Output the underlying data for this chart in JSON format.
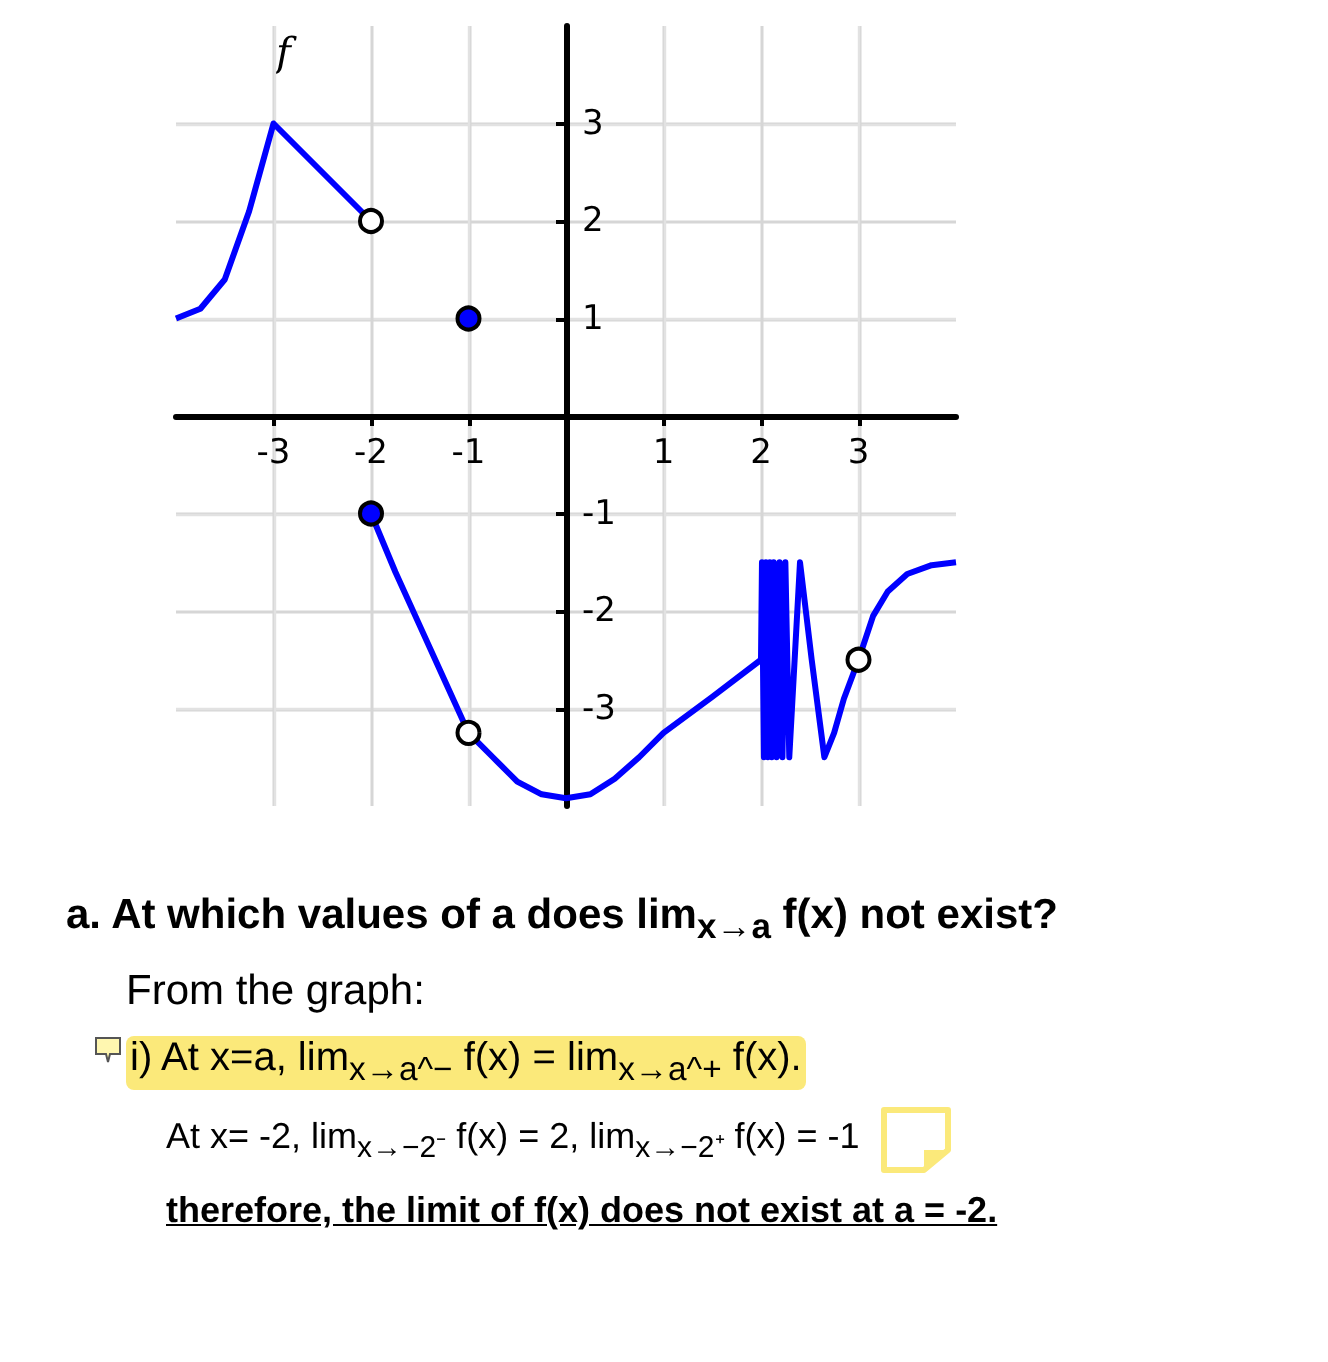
{
  "chart_data": {
    "type": "line",
    "xlim": [
      -4,
      4
    ],
    "ylim": [
      -4,
      4
    ],
    "xticks": [
      -3,
      -2,
      -1,
      1,
      2,
      3
    ],
    "yticks": [
      -3,
      -2,
      -1,
      1,
      2,
      3
    ],
    "grid": true,
    "series": [
      {
        "color": "#0000ff",
        "marker": "none",
        "x": [
          -4,
          -3.75,
          -3.5,
          -3.25,
          -3,
          -2
        ],
        "values": [
          1,
          1.1,
          1.4,
          2.1,
          3,
          2
        ]
      },
      {
        "color": "#0000ff",
        "marker": "none",
        "x": [
          -2,
          -1.75,
          -1.5,
          -1.25,
          -1,
          -0.75,
          -0.5,
          -0.25,
          0,
          0.25,
          0.5,
          0.75,
          1,
          1.5,
          2,
          2.01,
          2.03,
          2.05,
          2.07,
          2.09,
          2.11,
          2.13,
          2.16,
          2.19,
          2.22,
          2.25,
          2.29,
          2.4,
          2.52,
          2.65,
          2.75,
          2.85,
          3,
          3.15,
          3.3,
          3.5,
          3.75,
          4
        ],
        "values": [
          -1,
          -1.6,
          -2.15,
          -2.7,
          -3.25,
          -3.5,
          -3.75,
          -3.88,
          -3.92,
          -3.88,
          -3.72,
          -3.5,
          -3.25,
          -2.88,
          -2.5,
          -1.5,
          -3.5,
          -1.5,
          -3.5,
          -1.5,
          -3.5,
          -1.5,
          -3.5,
          -1.5,
          -3.5,
          -1.5,
          -3.5,
          -1.5,
          -2.5,
          -3.5,
          -3.25,
          -2.9,
          -2.5,
          -2.05,
          -1.8,
          -1.62,
          -1.53,
          -1.5
        ]
      },
      {
        "type": "scatter",
        "color": "#0000ff",
        "marker": "circle",
        "x": [
          -1,
          -2
        ],
        "values": [
          1,
          -1
        ]
      },
      {
        "type": "scatter",
        "color": "#ffffff",
        "marker": "circle",
        "x": [
          -2,
          -1,
          3
        ],
        "values": [
          2,
          -3.25,
          -2.5
        ]
      }
    ],
    "annotations": [
      "f",
      "a.  At which values of a does lim$_{x→a}$ f(x) not exist?",
      "From the graph:",
      "i) At x=a,  lim$_{x→a^−}$ f(x) = lim$_{x→a^+}$ f(x).",
      "At x= -2,  lim$_{x→−2⁻}$ f(x) = 2,  lim$_{x→−2⁺}$ f(x) = -1",
      "therefore, the limit of f(x) does not exist at a = -2."
    ]
  }
}
